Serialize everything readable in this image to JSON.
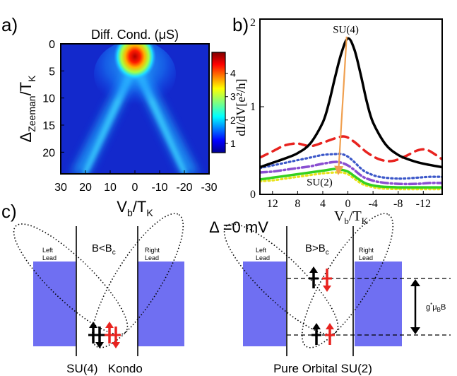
{
  "panels": {
    "a": "a)",
    "b": "b)",
    "c": "c)"
  },
  "chart_data": [
    {
      "panel": "a",
      "type": "heatmap",
      "title": "Diff. Cond. (μS)",
      "xlabel_main": "V",
      "xlabel_sub": "b",
      "xlabel_rest": "/T",
      "xlabel_sub2": "K",
      "ylabel_main": "Δ",
      "ylabel_sub": "Zeeman",
      "ylabel_rest": "/T",
      "ylabel_sub2": "K",
      "x_range": [
        30,
        -30
      ],
      "y_range": [
        0,
        24
      ],
      "x_ticks": [
        "30",
        "20",
        "10",
        "0",
        "-10",
        "-20",
        "-30"
      ],
      "x_tick_values": [
        30,
        20,
        10,
        0,
        -10,
        -20,
        -30
      ],
      "y_ticks": [
        "0",
        "5",
        "10",
        "15",
        "20"
      ],
      "y_tick_values": [
        0,
        5,
        10,
        15,
        20
      ],
      "colorbar_range": [
        0.6,
        4.9
      ],
      "colorbar_ticks": [
        "1",
        "2",
        "3",
        "4"
      ],
      "colorbar_tick_values": [
        1,
        2,
        3,
        4
      ],
      "zero_bias_peak": {
        "x": 0,
        "y": 1.5,
        "value": 4.8
      },
      "split_peak_slope": 0.9
    },
    {
      "panel": "b",
      "type": "line",
      "xlabel_main": "V",
      "xlabel_sub": "b",
      "xlabel_rest": "/T",
      "xlabel_sub2": "K",
      "ylabel": "dI/dV[e²/h]",
      "x_range": [
        14,
        -15
      ],
      "y_range": [
        0,
        2
      ],
      "x_ticks": [
        "12",
        "8",
        "4",
        "0",
        "-4",
        "-8",
        "-12"
      ],
      "x_tick_values": [
        12,
        8,
        4,
        0,
        -4,
        -8,
        -12
      ],
      "y_ticks": [
        "0",
        "1",
        "2"
      ],
      "y_tick_values": [
        0,
        1,
        2
      ],
      "series": [
        {
          "name": "black",
          "color": "#000000",
          "style": "solid",
          "points": [
            [
              14,
              0.31
            ],
            [
              12,
              0.36
            ],
            [
              10,
              0.41
            ],
            [
              8,
              0.47
            ],
            [
              6,
              0.58
            ],
            [
              4,
              0.82
            ],
            [
              3,
              1.05
            ],
            [
              2,
              1.35
            ],
            [
              1,
              1.62
            ],
            [
              0,
              1.78
            ],
            [
              -1,
              1.66
            ],
            [
              -2,
              1.38
            ],
            [
              -3,
              1.06
            ],
            [
              -4,
              0.82
            ],
            [
              -6,
              0.57
            ],
            [
              -8,
              0.45
            ],
            [
              -10,
              0.39
            ],
            [
              -12,
              0.35
            ],
            [
              -15,
              0.31
            ]
          ]
        },
        {
          "name": "red",
          "color": "#e8231f",
          "style": "dashed",
          "points": [
            [
              14,
              0.42
            ],
            [
              12,
              0.49
            ],
            [
              10,
              0.56
            ],
            [
              8,
              0.58
            ],
            [
              6,
              0.55
            ],
            [
              4,
              0.59
            ],
            [
              2,
              0.64
            ],
            [
              0.5,
              0.66
            ],
            [
              -1,
              0.6
            ],
            [
              -3,
              0.48
            ],
            [
              -5,
              0.4
            ],
            [
              -7,
              0.38
            ],
            [
              -9,
              0.43
            ],
            [
              -11,
              0.5
            ],
            [
              -12.5,
              0.51
            ],
            [
              -14,
              0.45
            ],
            [
              -15,
              0.4
            ]
          ]
        },
        {
          "name": "blue",
          "color": "#3b57c9",
          "style": "dotted",
          "points": [
            [
              14,
              0.3
            ],
            [
              12,
              0.33
            ],
            [
              10,
              0.36
            ],
            [
              8,
              0.39
            ],
            [
              6,
              0.42
            ],
            [
              4,
              0.45
            ],
            [
              2,
              0.46
            ],
            [
              1,
              0.46
            ],
            [
              0,
              0.43
            ],
            [
              -1,
              0.37
            ],
            [
              -2,
              0.3
            ],
            [
              -3,
              0.25
            ],
            [
              -5,
              0.2
            ],
            [
              -8,
              0.18
            ],
            [
              -11,
              0.19
            ],
            [
              -13,
              0.2
            ],
            [
              -15,
              0.2
            ]
          ]
        },
        {
          "name": "purple",
          "color": "#8a4fd1",
          "style": "dashdot",
          "points": [
            [
              14,
              0.25
            ],
            [
              12,
              0.26
            ],
            [
              10,
              0.28
            ],
            [
              8,
              0.3
            ],
            [
              6,
              0.32
            ],
            [
              4,
              0.35
            ],
            [
              2,
              0.37
            ],
            [
              1,
              0.36
            ],
            [
              0,
              0.33
            ],
            [
              -1,
              0.28
            ],
            [
              -2,
              0.22
            ],
            [
              -3,
              0.18
            ],
            [
              -5,
              0.14
            ],
            [
              -8,
              0.12
            ],
            [
              -11,
              0.12
            ],
            [
              -13,
              0.13
            ],
            [
              -15,
              0.13
            ]
          ]
        },
        {
          "name": "green",
          "color": "#35d11f",
          "style": "solid",
          "points": [
            [
              14,
              0.17
            ],
            [
              12,
              0.19
            ],
            [
              10,
              0.21
            ],
            [
              8,
              0.23
            ],
            [
              6,
              0.25
            ],
            [
              4,
              0.27
            ],
            [
              2,
              0.29
            ],
            [
              1,
              0.28
            ],
            [
              0,
              0.26
            ],
            [
              -1,
              0.21
            ],
            [
              -2,
              0.16
            ],
            [
              -3,
              0.12
            ],
            [
              -5,
              0.09
            ],
            [
              -8,
              0.08
            ],
            [
              -11,
              0.08
            ],
            [
              -13,
              0.08
            ],
            [
              -15,
              0.08
            ]
          ]
        },
        {
          "name": "yellow",
          "color": "#e8e21a",
          "style": "dotted",
          "points": [
            [
              14,
              0.15
            ],
            [
              12,
              0.16
            ],
            [
              10,
              0.18
            ],
            [
              8,
              0.2
            ],
            [
              6,
              0.22
            ],
            [
              4,
              0.24
            ],
            [
              2,
              0.25
            ],
            [
              1,
              0.25
            ],
            [
              0,
              0.23
            ],
            [
              -1,
              0.18
            ],
            [
              -2,
              0.13
            ],
            [
              -3,
              0.1
            ],
            [
              -5,
              0.07
            ],
            [
              -8,
              0.06
            ],
            [
              -11,
              0.06
            ],
            [
              -13,
              0.06
            ],
            [
              -15,
              0.06
            ]
          ]
        }
      ],
      "annotations": [
        {
          "text": "SU(4)",
          "x": 0.6,
          "y": 1.81,
          "color": "#f0a050"
        },
        {
          "text": "SU(2)",
          "x": 3.2,
          "y": 0.1,
          "color": "#f0a050"
        }
      ],
      "arrow": {
        "from": [
          0.2,
          1.8
        ],
        "to": [
          1.5,
          0.26
        ],
        "color": "#f0a050"
      }
    }
  ],
  "diagram": {
    "title": "Δ =0 mV",
    "left": {
      "left_lead": [
        "Left",
        "Lead"
      ],
      "right_lead": [
        "Right",
        "Lead"
      ],
      "condition_main": "B<B",
      "condition_sub": "c",
      "caption": "SU(4)   Kondo"
    },
    "right": {
      "left_lead": [
        "Left",
        "Lead"
      ],
      "right_lead": [
        "Right",
        "Lead"
      ],
      "condition_main": "B>B",
      "condition_sub": "c",
      "zeeman_main": "g",
      "zeeman_sup": "*",
      "zeeman_mu": "μ",
      "zeeman_sub": "B",
      "zeeman_end": "B",
      "caption": "Pure Orbital SU(2)"
    },
    "lead_color": "#6f6ff2",
    "spin_black": "#000000",
    "spin_red": "#e8231f"
  }
}
